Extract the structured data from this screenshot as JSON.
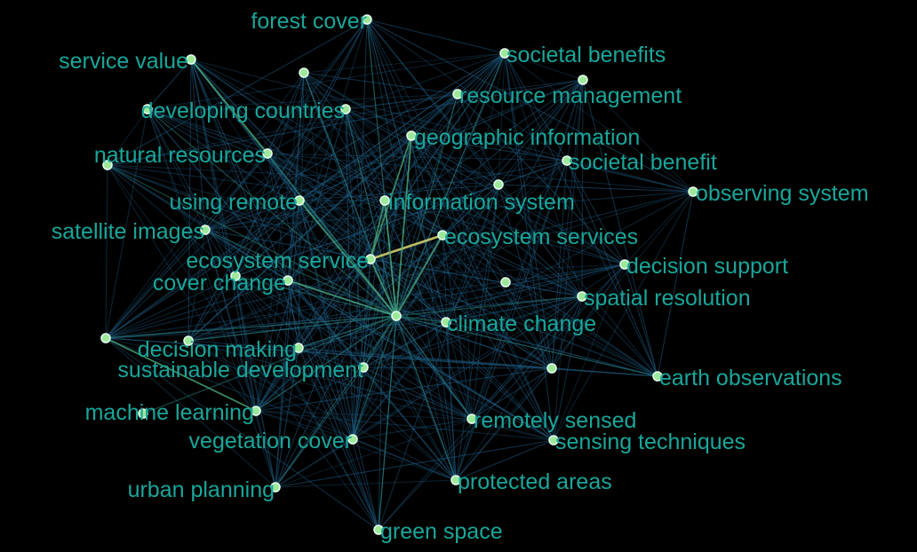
{
  "colors": {
    "background": "#000000",
    "label": "#1aa69a",
    "node_fill": "#9ee89a",
    "node_stroke": "#e8fff0",
    "edge_weak": "#1f5f86",
    "edge_medium": "#2f8f86",
    "edge_strong": "#4fae7c",
    "edge_highlight": "#c8c66a"
  },
  "nodes": [
    {
      "id": "forest-cover",
      "label": "forest cover"
    },
    {
      "id": "service-value",
      "label": "service value"
    },
    {
      "id": "societal-benefits",
      "label": "societal benefits"
    },
    {
      "id": "resource-management",
      "label": "resource management"
    },
    {
      "id": "developing-countries",
      "label": "developing countries"
    },
    {
      "id": "geographic-information",
      "label": "geographic information"
    },
    {
      "id": "natural-resources",
      "label": "natural resources"
    },
    {
      "id": "societal-benefit",
      "label": "societal benefit"
    },
    {
      "id": "observing-system",
      "label": "observing system"
    },
    {
      "id": "using-remote",
      "label": "using remote"
    },
    {
      "id": "information-system",
      "label": "information system"
    },
    {
      "id": "satellite-images",
      "label": "satellite images"
    },
    {
      "id": "ecosystem-services",
      "label": "ecosystem services"
    },
    {
      "id": "ecosystem-service",
      "label": "ecosystem service"
    },
    {
      "id": "decision-support",
      "label": "decision support"
    },
    {
      "id": "cover-change",
      "label": "cover change"
    },
    {
      "id": "spatial-resolution",
      "label": "spatial resolution"
    },
    {
      "id": "climate-change",
      "label": "climate change"
    },
    {
      "id": "decision-making",
      "label": "decision making"
    },
    {
      "id": "sustainable-development",
      "label": "sustainable development"
    },
    {
      "id": "earth-observations",
      "label": "earth observations"
    },
    {
      "id": "machine-learning",
      "label": "machine learning"
    },
    {
      "id": "remotely-sensed",
      "label": "remotely sensed"
    },
    {
      "id": "vegetation-cover",
      "label": "vegetation cover"
    },
    {
      "id": "sensing-techniques",
      "label": "sensing techniques"
    },
    {
      "id": "protected-areas",
      "label": "protected areas"
    },
    {
      "id": "urban-planning",
      "label": "urban planning"
    },
    {
      "id": "green-space",
      "label": "green space"
    },
    {
      "id": "n1",
      "label": ""
    },
    {
      "id": "n2",
      "label": ""
    },
    {
      "id": "n3",
      "label": ""
    },
    {
      "id": "n4",
      "label": ""
    },
    {
      "id": "n5",
      "label": ""
    },
    {
      "id": "n6",
      "label": ""
    },
    {
      "id": "n7",
      "label": ""
    },
    {
      "id": "n8",
      "label": ""
    },
    {
      "id": "n9",
      "label": ""
    },
    {
      "id": "n10",
      "label": ""
    }
  ],
  "edges_strong": [
    [
      "ecosystem-service",
      "ecosystem-services"
    ],
    [
      "n7",
      "ecosystem-service"
    ],
    [
      "n7",
      "ecosystem-services"
    ],
    [
      "n7",
      "geographic-information"
    ],
    [
      "n7",
      "information-system"
    ],
    [
      "n7",
      "cover-change"
    ],
    [
      "n7",
      "using-remote"
    ],
    [
      "ecosystem-service",
      "geographic-information"
    ],
    [
      "ecosystem-service",
      "information-system"
    ],
    [
      "service-value",
      "natural-resources"
    ],
    [
      "n8",
      "machine-learning"
    ]
  ]
}
